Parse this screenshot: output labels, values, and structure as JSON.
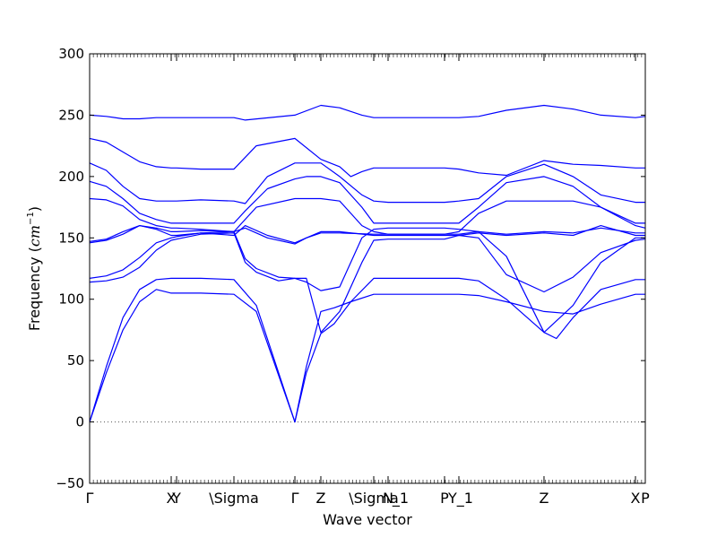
{
  "chart_data": {
    "type": "line",
    "title": "",
    "xlabel": "Wave vector",
    "ylabel_main": "Frequency (",
    "ylabel_unit": "cm",
    "ylabel_exp": "−1",
    "ylabel_close": ")",
    "ylim": [
      -50,
      300
    ],
    "xlim": [
      0,
      1
    ],
    "grid": false,
    "line_color": "#0000ff",
    "zero_line_color": "#555555",
    "y_ticks": [
      -50,
      0,
      50,
      100,
      150,
      200,
      250,
      300
    ],
    "x_tick_positions": [
      0,
      0.1468,
      0.1565,
      0.2597,
      0.3694,
      0.4161,
      0.5113,
      0.5371,
      0.6387,
      0.6645,
      0.8177,
      0.9823,
      1.0
    ],
    "x_tick_labels": [
      {
        "label": "Γ",
        "x": 0,
        "anchor": "middle",
        "italic": false
      },
      {
        "label": "X",
        "x": 0.1468,
        "anchor": "middle",
        "italic": false
      },
      {
        "label": "Y",
        "x": 0.1565,
        "anchor": "middle",
        "italic": false
      },
      {
        "label": "\\Sigma",
        "x": 0.2597,
        "anchor": "middle",
        "italic": false
      },
      {
        "label": "Γ",
        "x": 0.3694,
        "anchor": "middle",
        "italic": false
      },
      {
        "label": "Z",
        "x": 0.4161,
        "anchor": "middle",
        "italic": false
      },
      {
        "label": "\\Sigma",
        "x": 0.5113,
        "anchor": "middle",
        "italic": false
      },
      {
        "label": "N",
        "x": 0.5371,
        "anchor": "middle",
        "italic": false
      },
      {
        "label": "_1",
        "x": 0.5597,
        "anchor": "middle",
        "italic": false
      },
      {
        "label": "P",
        "x": 0.6387,
        "anchor": "middle",
        "italic": false
      },
      {
        "label": "Y_1",
        "x": 0.6677,
        "anchor": "middle",
        "italic": false
      },
      {
        "label": "Z",
        "x": 0.8177,
        "anchor": "middle",
        "italic": false
      },
      {
        "label": "X",
        "x": 0.9823,
        "anchor": "middle",
        "italic": false
      },
      {
        "label": "P",
        "x": 1.0,
        "anchor": "middle",
        "italic": false
      }
    ],
    "series": [
      {
        "x": [
          0,
          0.03,
          0.06,
          0.09,
          0.12,
          0.1468,
          0.1565,
          0.2,
          0.2597,
          0.3,
          0.3694,
          0.39,
          0.4161,
          0.44,
          0.47,
          0.5113,
          0.5371,
          0.6387,
          0.6645,
          0.7,
          0.75,
          0.8177,
          0.87,
          0.92,
          0.9823,
          1.0
        ],
        "values": [
          0,
          40,
          75,
          98,
          108,
          105,
          105,
          105,
          104,
          90,
          0,
          45,
          90,
          93,
          98,
          104,
          104,
          104,
          104,
          103,
          98,
          90,
          88,
          96,
          104,
          104
        ]
      },
      {
        "x": [
          0,
          0.03,
          0.06,
          0.09,
          0.12,
          0.1468,
          0.1565,
          0.2,
          0.2597,
          0.3,
          0.3694,
          0.39,
          0.4161,
          0.44,
          0.47,
          0.5113,
          0.5371,
          0.6387,
          0.6645,
          0.7,
          0.75,
          0.8177,
          0.84,
          0.87,
          0.92,
          0.9823,
          1.0
        ],
        "values": [
          0,
          45,
          85,
          108,
          116,
          117,
          117,
          117,
          116,
          95,
          0,
          40,
          72,
          80,
          98,
          117,
          117,
          117,
          117,
          115,
          100,
          73,
          68,
          85,
          108,
          116,
          116
        ]
      },
      {
        "x": [
          0,
          0.03,
          0.06,
          0.09,
          0.12,
          0.1468,
          0.1565,
          0.2,
          0.2597,
          0.28,
          0.3,
          0.34,
          0.3694,
          0.39,
          0.4161,
          0.45,
          0.49,
          0.5113,
          0.5371,
          0.6387,
          0.6645,
          0.7,
          0.75,
          0.8177,
          0.87,
          0.92,
          0.9823,
          1.0
        ],
        "values": [
          114,
          115,
          118,
          126,
          140,
          148,
          149,
          153,
          154,
          130,
          122,
          115,
          117,
          114,
          107,
          110,
          150,
          157,
          158,
          158,
          157,
          155,
          135,
          73,
          95,
          130,
          150,
          150
        ]
      },
      {
        "x": [
          0,
          0.03,
          0.06,
          0.09,
          0.12,
          0.1468,
          0.1565,
          0.2,
          0.2597,
          0.28,
          0.3,
          0.34,
          0.3694,
          0.39,
          0.4161,
          0.45,
          0.49,
          0.5113,
          0.5371,
          0.6387,
          0.6645,
          0.7,
          0.75,
          0.8177,
          0.87,
          0.92,
          0.9823,
          1.0
        ],
        "values": [
          117,
          119,
          124,
          134,
          146,
          150,
          151,
          154,
          155,
          133,
          125,
          118,
          117,
          117,
          73,
          90,
          130,
          148,
          149,
          149,
          152,
          150,
          120,
          106,
          118,
          138,
          148,
          149
        ]
      },
      {
        "x": [
          0,
          0.03,
          0.06,
          0.09,
          0.12,
          0.1468,
          0.1565,
          0.2,
          0.2597,
          0.28,
          0.32,
          0.3694,
          0.39,
          0.4161,
          0.45,
          0.5113,
          0.5371,
          0.6387,
          0.6645,
          0.7,
          0.75,
          0.8177,
          0.87,
          0.92,
          0.9823,
          1.0
        ],
        "values": [
          146,
          148,
          153,
          160,
          157,
          152,
          152,
          154,
          152,
          160,
          152,
          146,
          150,
          155,
          155,
          152,
          152,
          152,
          152,
          154,
          152,
          154,
          152,
          160,
          152,
          152
        ]
      },
      {
        "x": [
          0,
          0.03,
          0.06,
          0.09,
          0.12,
          0.1468,
          0.1565,
          0.2,
          0.2597,
          0.28,
          0.32,
          0.3694,
          0.39,
          0.4161,
          0.45,
          0.5113,
          0.5371,
          0.6387,
          0.6645,
          0.7,
          0.75,
          0.8177,
          0.87,
          0.92,
          0.9823,
          1.0
        ],
        "values": [
          147,
          149,
          155,
          160,
          158,
          155,
          155,
          156,
          155,
          158,
          150,
          145,
          150,
          154,
          154,
          153,
          153,
          153,
          153,
          155,
          153,
          155,
          154,
          158,
          154,
          154
        ]
      },
      {
        "x": [
          0,
          0.03,
          0.06,
          0.09,
          0.12,
          0.1468,
          0.1565,
          0.2,
          0.2597,
          0.3,
          0.3694,
          0.4161,
          0.45,
          0.49,
          0.5113,
          0.5371,
          0.6387,
          0.6645,
          0.7,
          0.75,
          0.8177,
          0.87,
          0.92,
          0.9823,
          1.0
        ],
        "values": [
          182,
          181,
          176,
          165,
          160,
          158,
          158,
          157,
          155,
          175,
          182,
          182,
          180,
          160,
          155,
          153,
          153,
          155,
          170,
          180,
          180,
          180,
          175,
          160,
          158
        ]
      },
      {
        "x": [
          0,
          0.03,
          0.06,
          0.09,
          0.12,
          0.1468,
          0.1565,
          0.2,
          0.2597,
          0.28,
          0.32,
          0.3694,
          0.39,
          0.4161,
          0.45,
          0.49,
          0.5113,
          0.5371,
          0.6387,
          0.6645,
          0.7,
          0.75,
          0.8177,
          0.87,
          0.92,
          0.9823,
          1.0
        ],
        "values": [
          196,
          192,
          182,
          170,
          165,
          162,
          162,
          162,
          162,
          172,
          190,
          198,
          200,
          200,
          195,
          175,
          162,
          162,
          162,
          162,
          175,
          195,
          200,
          192,
          175,
          162,
          162
        ]
      },
      {
        "x": [
          0,
          0.03,
          0.06,
          0.09,
          0.12,
          0.1468,
          0.1565,
          0.2,
          0.2597,
          0.28,
          0.32,
          0.3694,
          0.39,
          0.4161,
          0.45,
          0.49,
          0.5113,
          0.5371,
          0.6387,
          0.6645,
          0.7,
          0.75,
          0.8177,
          0.87,
          0.92,
          0.9823,
          1.0
        ],
        "values": [
          211,
          205,
          192,
          182,
          180,
          180,
          180,
          181,
          180,
          178,
          200,
          211,
          211,
          211,
          200,
          185,
          180,
          179,
          179,
          180,
          182,
          200,
          210,
          200,
          185,
          179,
          179
        ]
      },
      {
        "x": [
          0,
          0.03,
          0.06,
          0.09,
          0.12,
          0.1468,
          0.1565,
          0.2,
          0.2597,
          0.3,
          0.3694,
          0.4161,
          0.45,
          0.47,
          0.49,
          0.5113,
          0.5371,
          0.6387,
          0.6645,
          0.7,
          0.75,
          0.8177,
          0.87,
          0.92,
          0.9823,
          1.0
        ],
        "values": [
          231,
          228,
          220,
          212,
          208,
          207,
          207,
          206,
          206,
          225,
          231,
          214,
          208,
          200,
          204,
          207,
          207,
          207,
          206,
          203,
          201,
          213,
          210,
          209,
          207,
          207
        ]
      },
      {
        "x": [
          0,
          0.03,
          0.06,
          0.09,
          0.12,
          0.1468,
          0.1565,
          0.2,
          0.2597,
          0.28,
          0.3694,
          0.4161,
          0.45,
          0.49,
          0.5113,
          0.5371,
          0.6387,
          0.6645,
          0.7,
          0.75,
          0.8177,
          0.87,
          0.92,
          0.9823,
          1.0
        ],
        "values": [
          250,
          249,
          247,
          247,
          248,
          248,
          248,
          248,
          248,
          246,
          250,
          258,
          256,
          250,
          248,
          248,
          248,
          248,
          249,
          254,
          258,
          255,
          250,
          248,
          249
        ]
      }
    ]
  }
}
